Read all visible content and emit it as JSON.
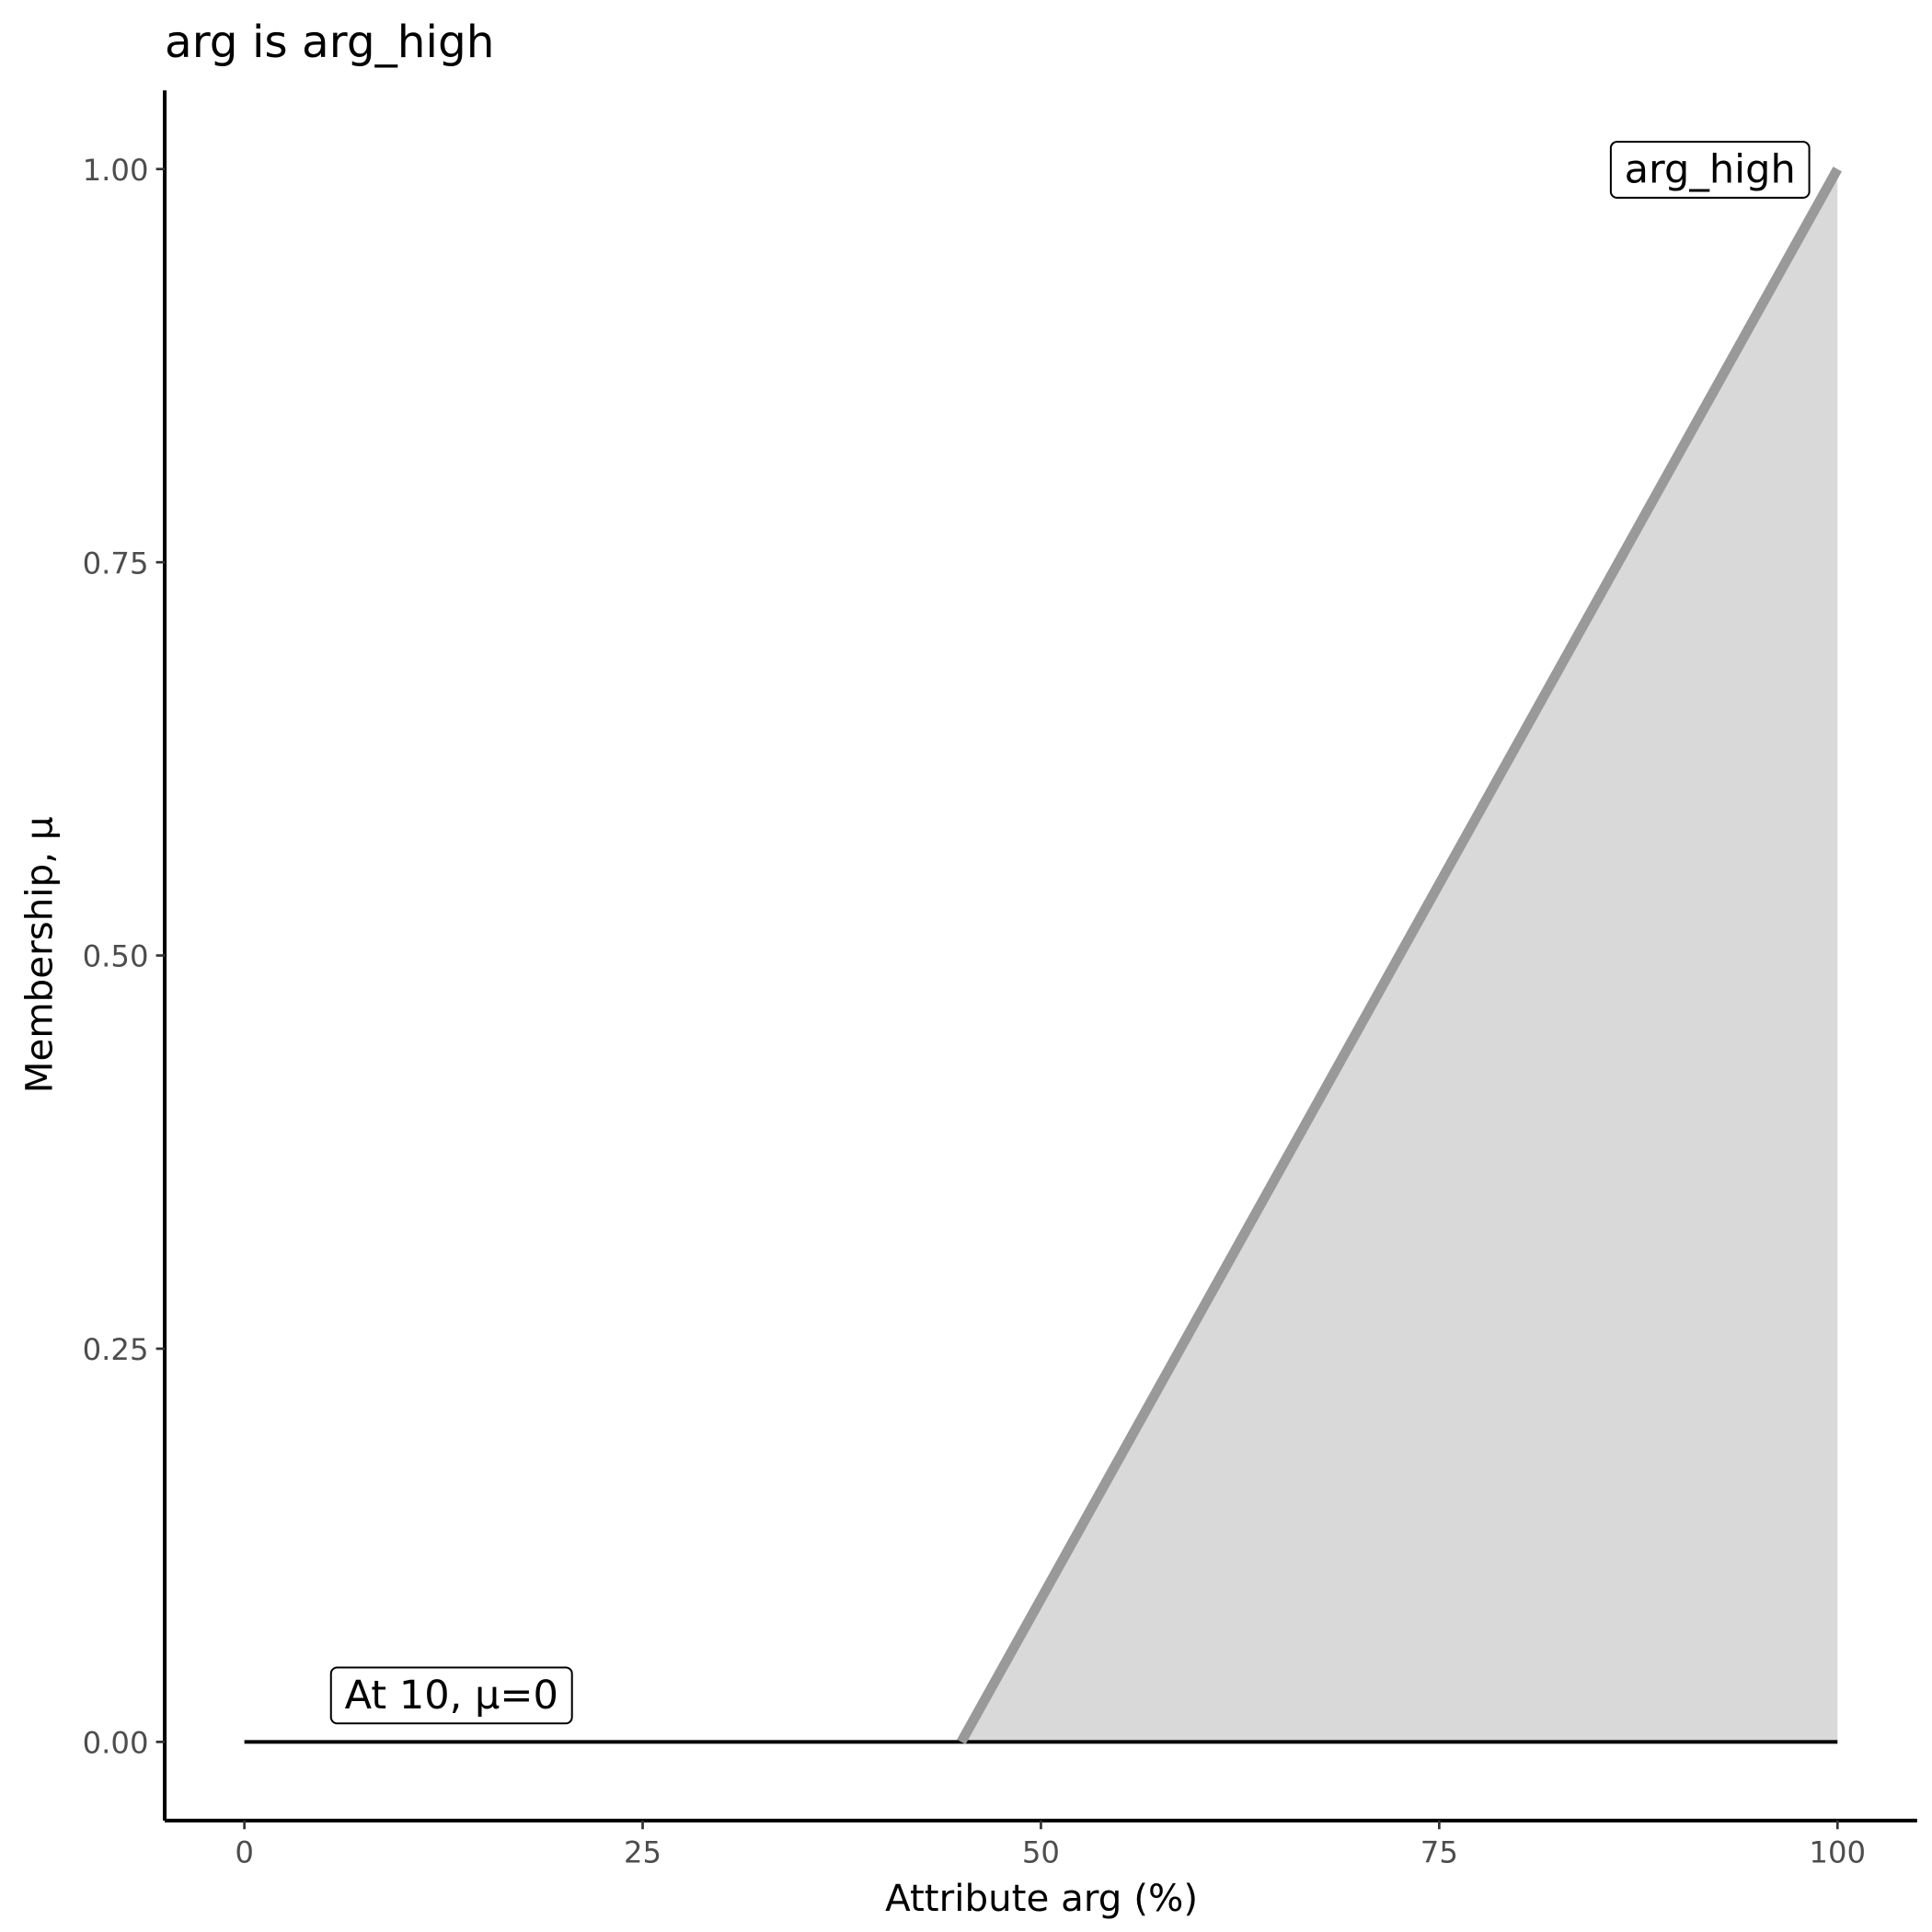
{
  "chart_data": {
    "type": "area",
    "title": "arg is arg_high",
    "x_label": "Attribute arg (%)",
    "y_label": "Membership, μ",
    "x": [
      0,
      45,
      100
    ],
    "values": [
      0,
      0,
      1
    ],
    "color": "#999999",
    "fill": "#d9d9d9",
    "baseline": {
      "x": [
        0,
        100
      ],
      "values": [
        0,
        0
      ],
      "color": "#000000"
    },
    "annotations": [
      {
        "text": "arg_high",
        "x": 92,
        "y": 1
      },
      {
        "text": "At 10, μ=0",
        "x": 13,
        "y": 0.03
      }
    ],
    "xlim": [
      -5,
      105
    ],
    "ylim": [
      -0.05,
      1.05
    ],
    "xticks": [
      0,
      25,
      50,
      75,
      100
    ],
    "yticks": [
      {
        "value": 0,
        "label": "0.00"
      },
      {
        "value": 0.25,
        "label": "0.25"
      },
      {
        "value": 0.5,
        "label": "0.50"
      },
      {
        "value": 0.75,
        "label": "0.75"
      },
      {
        "value": 1,
        "label": "1.00"
      }
    ]
  }
}
